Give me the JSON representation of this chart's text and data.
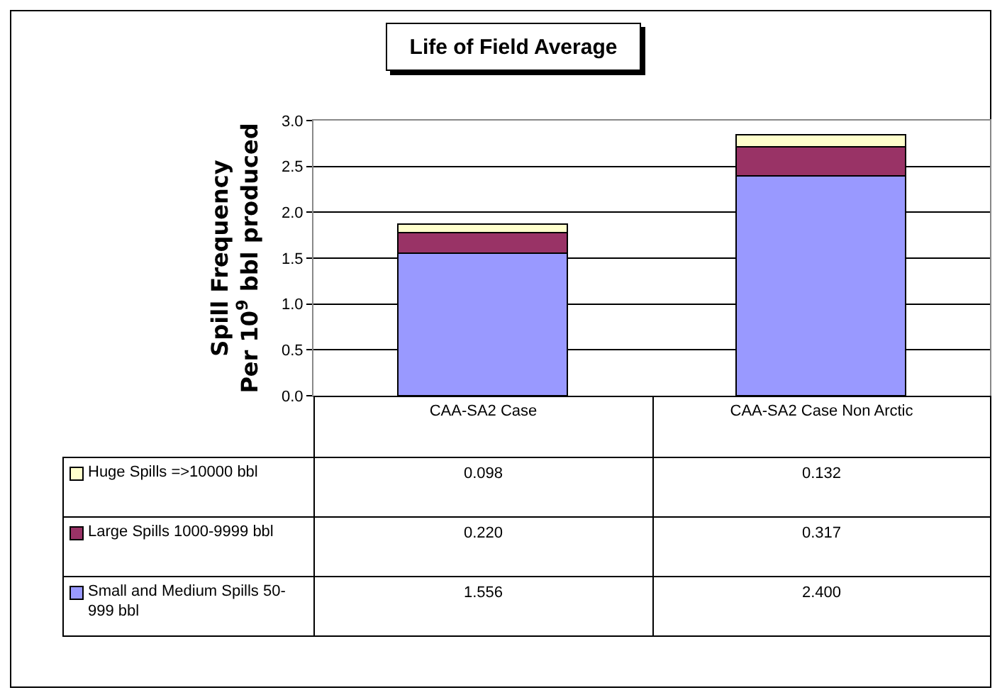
{
  "chart_data": {
    "type": "bar",
    "title": "Life of Field Average",
    "ylabel": "Spill Frequency\nPer 10$^{9}$ bbl produced",
    "categories": [
      "CAA-SA2 Case",
      "CAA-SA2 Case Non Arctic"
    ],
    "stacked": true,
    "series": [
      {
        "name": "Small and Medium Spills 50-999 bbl",
        "color": "#9999ff",
        "values": [
          1.556,
          2.4
        ],
        "value_labels": [
          "1.556",
          "2.400"
        ]
      },
      {
        "name": "Large Spills 1000-9999 bbl",
        "color": "#993366",
        "values": [
          0.22,
          0.317
        ],
        "value_labels": [
          "0.220",
          "0.317"
        ]
      },
      {
        "name": "Huge Spills =>10000 bbl",
        "color": "#ffffcc",
        "values": [
          0.098,
          0.132
        ],
        "value_labels": [
          "0.098",
          "0.132"
        ]
      }
    ],
    "ylim": [
      0,
      3
    ],
    "yticks": [
      {
        "value": 0,
        "label": "0.0"
      },
      {
        "value": 0.5,
        "label": "0.5"
      },
      {
        "value": 1,
        "label": "1.0"
      },
      {
        "value": 1.5,
        "label": "1.5"
      },
      {
        "value": 2,
        "label": "2.0"
      },
      {
        "value": 2.5,
        "label": "2.5"
      },
      {
        "value": 3,
        "label": "3.0"
      }
    ],
    "grid": "y",
    "legend": "bottom left"
  }
}
